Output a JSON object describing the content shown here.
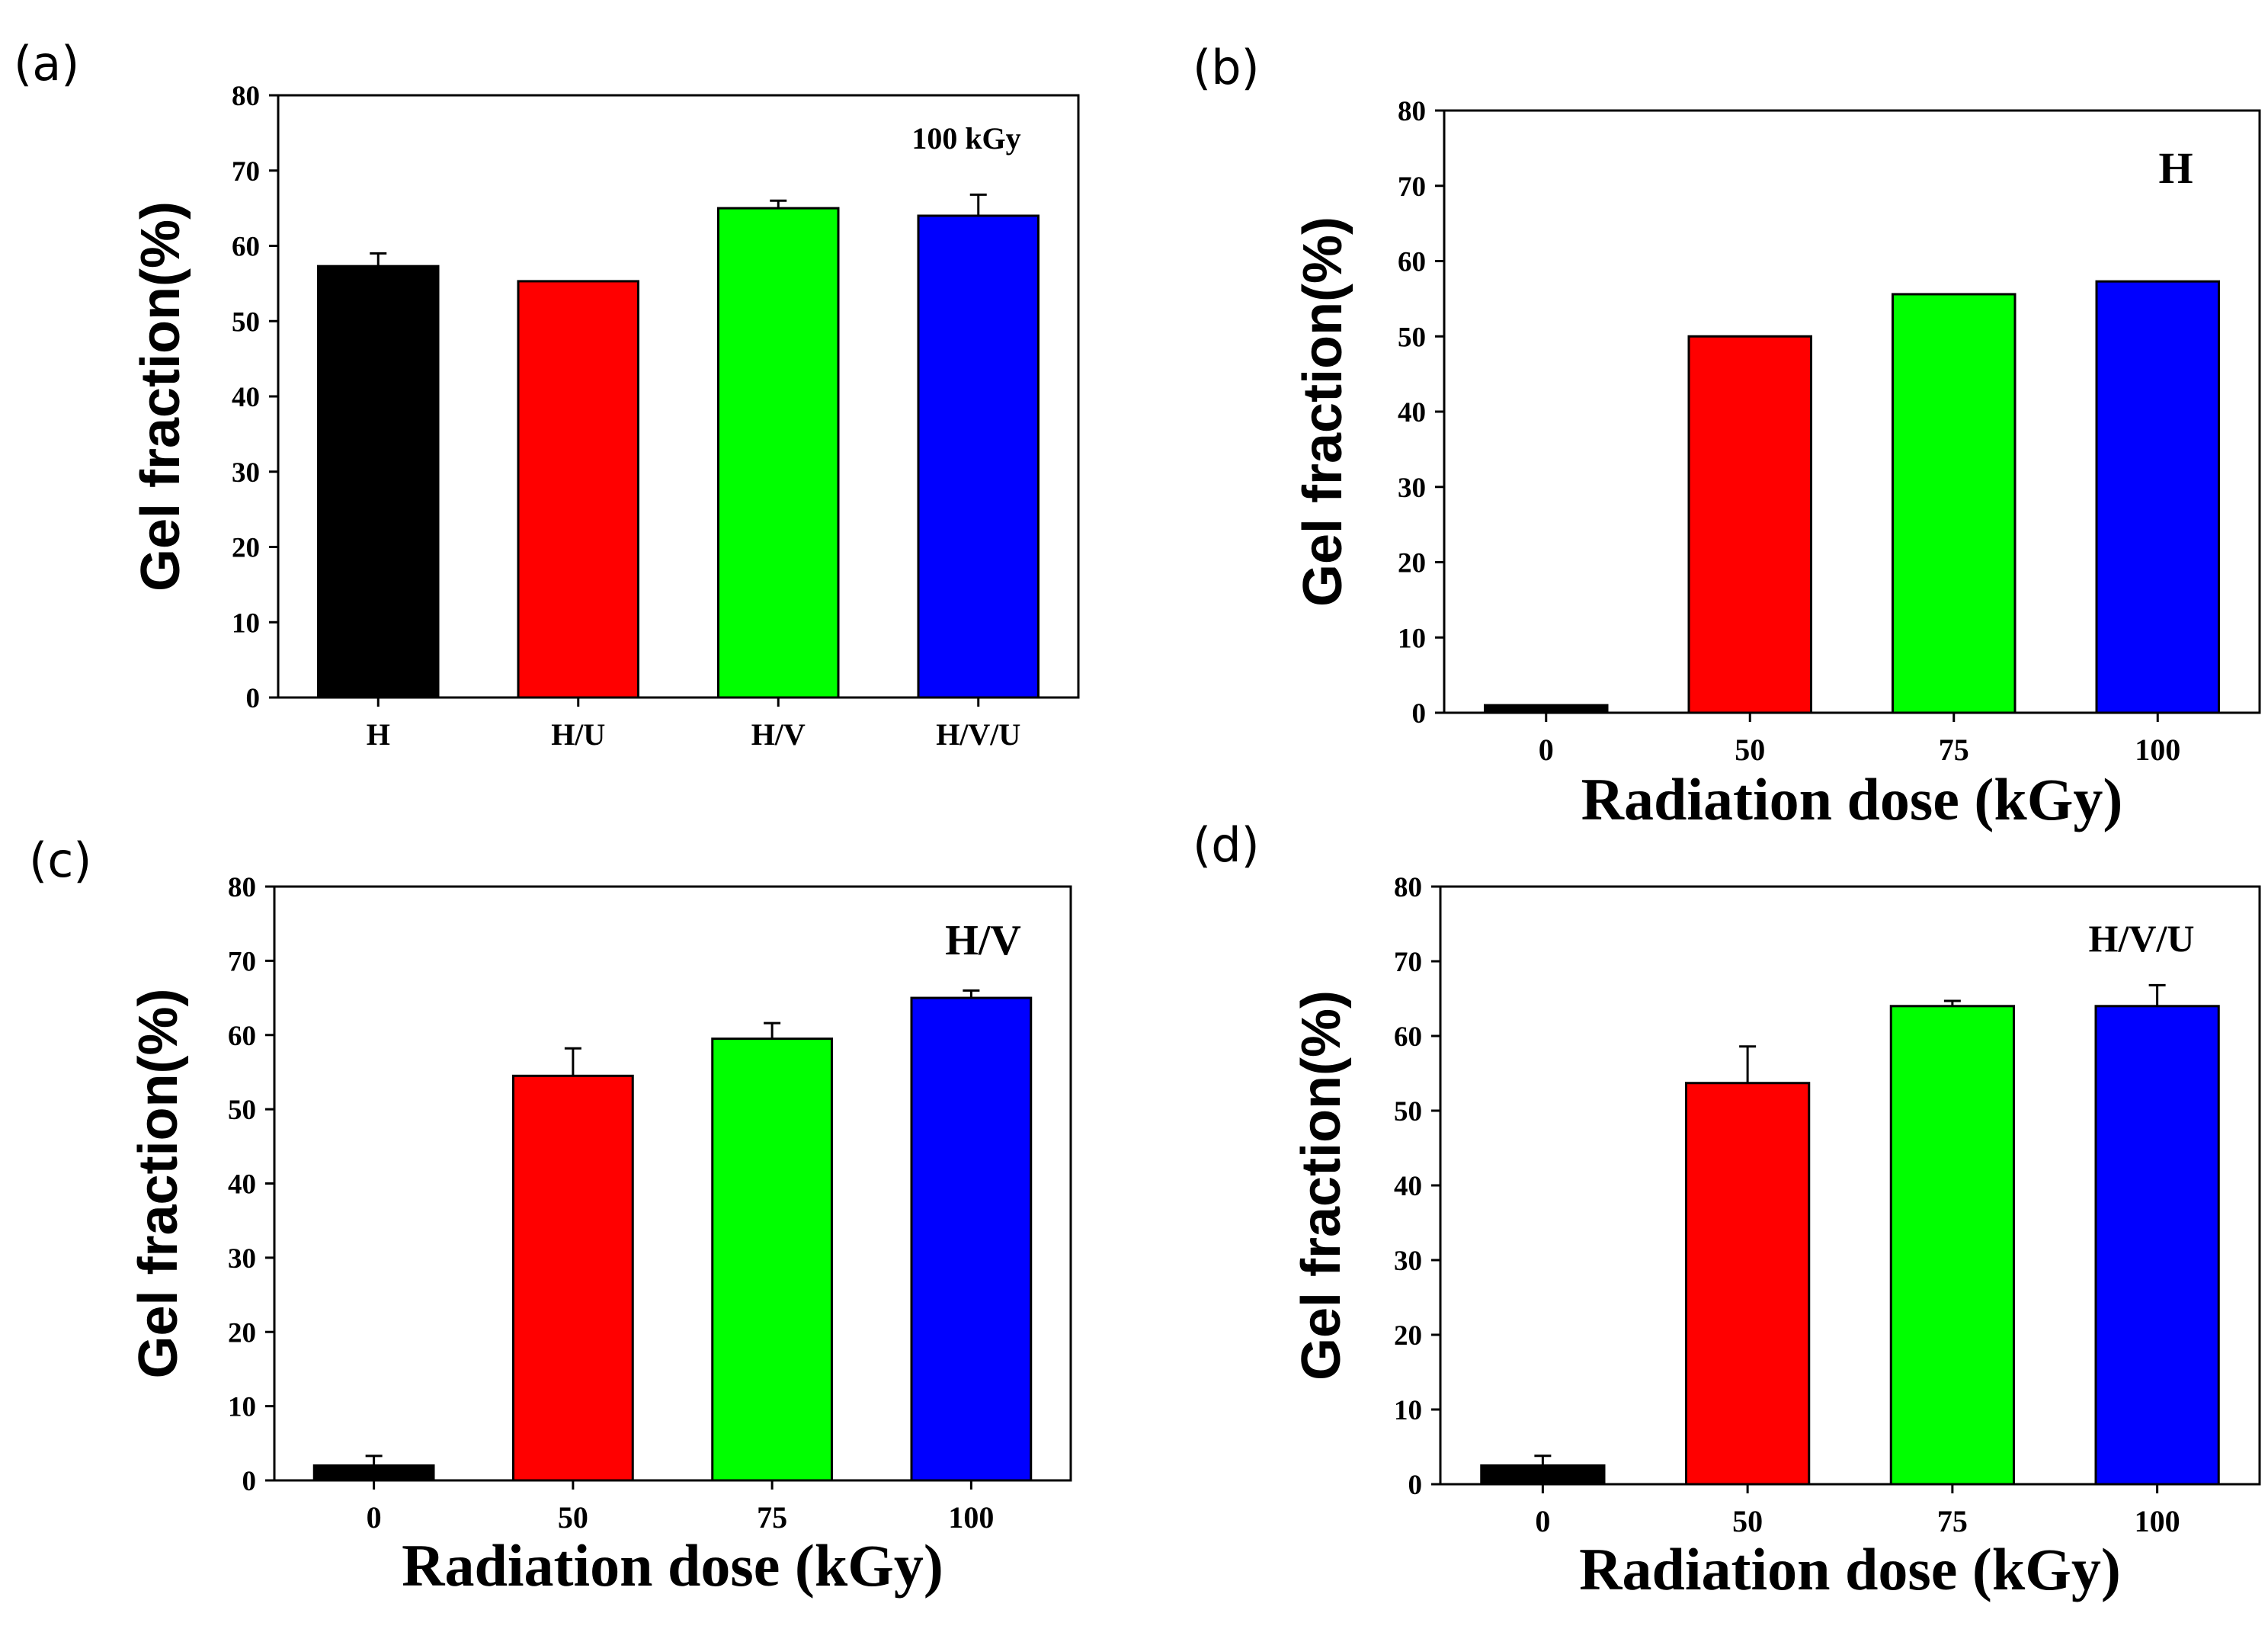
{
  "colors": {
    "bar_series": [
      "#000000",
      "#ff0000",
      "#00ff00",
      "#0000ff"
    ],
    "frame": "#000000",
    "background": "#ffffff"
  },
  "chart_data": [
    {
      "panel": "(a)",
      "type": "bar",
      "categories": [
        "H",
        "H/U",
        "H/V",
        "H/V/U"
      ],
      "values": [
        57.3,
        55.3,
        65.0,
        64.0
      ],
      "errors": [
        1.7,
        0,
        1.0,
        2.8
      ],
      "title": "",
      "annotation": "100 kGy",
      "xlabel": "",
      "ylabel": "Gel fraction(%)",
      "ylim": [
        0,
        80
      ],
      "yticks": [
        "0",
        "10",
        "20",
        "30",
        "40",
        "50",
        "60",
        "70",
        "80"
      ]
    },
    {
      "panel": "(b)",
      "type": "bar",
      "categories": [
        "0",
        "50",
        "75",
        "100"
      ],
      "values": [
        1.0,
        50.0,
        55.6,
        57.3
      ],
      "errors": [
        0,
        0,
        0,
        0
      ],
      "title": "",
      "annotation": "H",
      "xlabel": "Radiation dose (kGy)",
      "ylabel": "Gel fraction(%)",
      "ylim": [
        0,
        80
      ],
      "yticks": [
        "0",
        "10",
        "20",
        "30",
        "40",
        "50",
        "60",
        "70",
        "80"
      ]
    },
    {
      "panel": "(c)",
      "type": "bar",
      "categories": [
        "0",
        "50",
        "75",
        "100"
      ],
      "values": [
        2.0,
        54.5,
        59.5,
        65.0
      ],
      "errors": [
        1.3,
        3.7,
        2.1,
        1.0
      ],
      "title": "",
      "annotation": "H/V",
      "xlabel": "Radiation dose (kGy)",
      "ylabel": "Gel fraction(%)",
      "ylim": [
        0,
        80
      ],
      "yticks": [
        "0",
        "10",
        "20",
        "30",
        "40",
        "50",
        "60",
        "70",
        "80"
      ]
    },
    {
      "panel": "(d)",
      "type": "bar",
      "categories": [
        "0",
        "50",
        "75",
        "100"
      ],
      "values": [
        2.5,
        53.7,
        64.0,
        64.0
      ],
      "errors": [
        1.3,
        4.9,
        0.7,
        2.8
      ],
      "title": "",
      "annotation": "H/V/U",
      "xlabel": "Radiation dose (kGy)",
      "ylabel": "Gel fraction(%)",
      "ylim": [
        0,
        80
      ],
      "yticks": [
        "0",
        "10",
        "20",
        "30",
        "40",
        "50",
        "60",
        "70",
        "80"
      ]
    }
  ]
}
